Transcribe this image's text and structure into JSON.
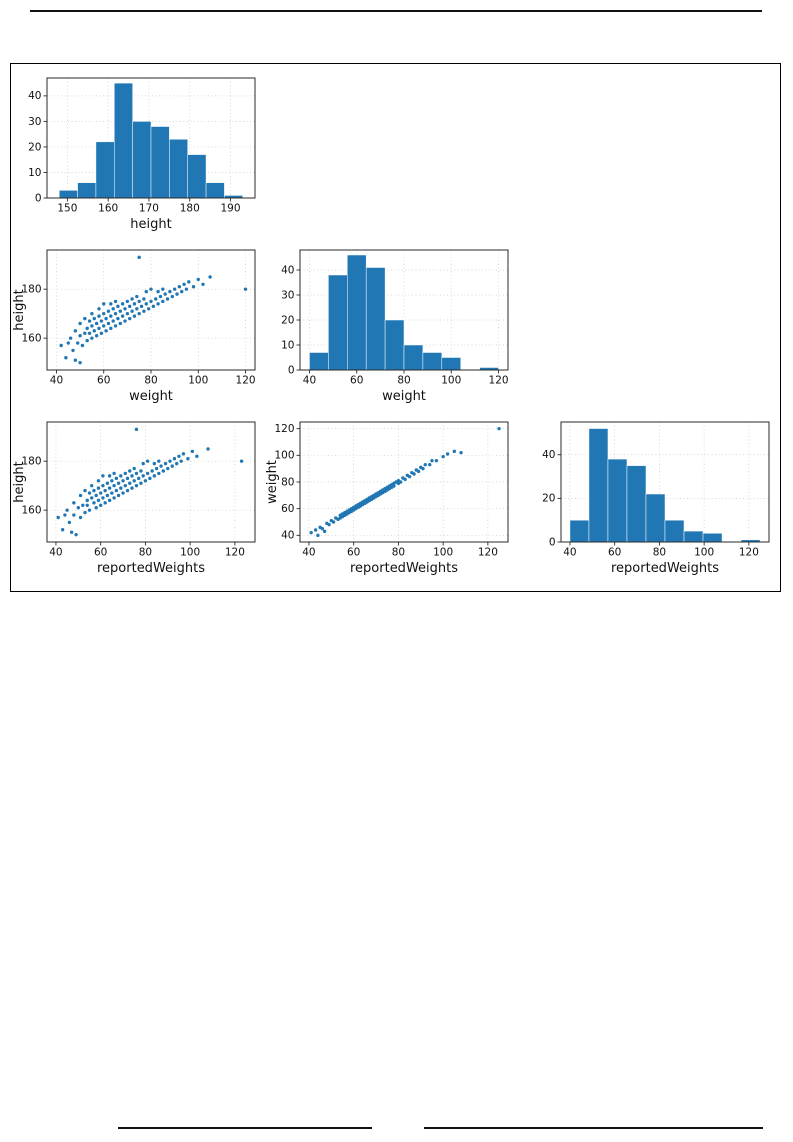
{
  "figure": {
    "accent_color": "#2077b4",
    "border_color": "#000000"
  },
  "chart_data": [
    {
      "type": "bar",
      "name": "height-histogram",
      "title": "",
      "xlabel": "height",
      "ylabel": "",
      "xlim": [
        145,
        196
      ],
      "ylim": [
        0,
        47
      ],
      "xticks": [
        150,
        160,
        170,
        180,
        190
      ],
      "yticks": [
        0,
        10,
        20,
        30,
        40
      ],
      "grid": true,
      "color": "#2077b4",
      "bins": {
        "start": 148,
        "width": 4.5,
        "counts": [
          3,
          6,
          22,
          45,
          30,
          28,
          23,
          17,
          6,
          1
        ]
      }
    },
    {
      "type": "scatter",
      "name": "weight-vs-height-scatter",
      "title": "",
      "xlabel": "weight",
      "ylabel": "height",
      "xlim": [
        36,
        124
      ],
      "ylim": [
        147,
        196
      ],
      "xticks": [
        40,
        60,
        80,
        100,
        120
      ],
      "yticks": [
        160,
        180
      ],
      "grid": true,
      "color": "#2077b4",
      "points": [
        [
          42,
          157
        ],
        [
          44,
          152
        ],
        [
          45,
          158
        ],
        [
          46,
          160
        ],
        [
          47,
          155
        ],
        [
          48,
          151
        ],
        [
          48,
          163
        ],
        [
          49,
          158
        ],
        [
          50,
          150
        ],
        [
          50,
          161
        ],
        [
          50,
          166
        ],
        [
          51,
          157
        ],
        [
          52,
          162
        ],
        [
          52,
          168
        ],
        [
          53,
          159
        ],
        [
          53,
          164
        ],
        [
          54,
          162
        ],
        [
          54,
          167
        ],
        [
          55,
          160
        ],
        [
          55,
          165
        ],
        [
          55,
          170
        ],
        [
          56,
          163
        ],
        [
          56,
          168
        ],
        [
          57,
          161
        ],
        [
          57,
          166
        ],
        [
          58,
          164
        ],
        [
          58,
          169
        ],
        [
          58,
          172
        ],
        [
          59,
          162
        ],
        [
          59,
          167
        ],
        [
          60,
          165
        ],
        [
          60,
          170
        ],
        [
          60,
          174
        ],
        [
          61,
          163
        ],
        [
          61,
          168
        ],
        [
          62,
          166
        ],
        [
          62,
          171
        ],
        [
          63,
          164
        ],
        [
          63,
          169
        ],
        [
          63,
          174
        ],
        [
          64,
          167
        ],
        [
          64,
          172
        ],
        [
          65,
          165
        ],
        [
          65,
          170
        ],
        [
          65,
          175
        ],
        [
          66,
          168
        ],
        [
          66,
          173
        ],
        [
          67,
          166
        ],
        [
          67,
          171
        ],
        [
          68,
          169
        ],
        [
          68,
          174
        ],
        [
          69,
          167
        ],
        [
          69,
          172
        ],
        [
          70,
          170
        ],
        [
          70,
          175
        ],
        [
          71,
          168
        ],
        [
          71,
          173
        ],
        [
          72,
          171
        ],
        [
          72,
          176
        ],
        [
          73,
          169
        ],
        [
          73,
          174
        ],
        [
          74,
          172
        ],
        [
          74,
          177
        ],
        [
          75,
          170
        ],
        [
          75,
          175
        ],
        [
          75,
          193
        ],
        [
          76,
          173
        ],
        [
          77,
          171
        ],
        [
          77,
          176
        ],
        [
          78,
          174
        ],
        [
          78,
          179
        ],
        [
          79,
          172
        ],
        [
          80,
          175
        ],
        [
          80,
          180
        ],
        [
          81,
          173
        ],
        [
          82,
          176
        ],
        [
          83,
          174
        ],
        [
          83,
          179
        ],
        [
          84,
          177
        ],
        [
          85,
          175
        ],
        [
          85,
          180
        ],
        [
          86,
          178
        ],
        [
          87,
          176
        ],
        [
          88,
          179
        ],
        [
          89,
          177
        ],
        [
          90,
          180
        ],
        [
          91,
          178
        ],
        [
          92,
          181
        ],
        [
          93,
          179
        ],
        [
          94,
          182
        ],
        [
          95,
          180
        ],
        [
          96,
          183
        ],
        [
          98,
          181
        ],
        [
          100,
          184
        ],
        [
          102,
          182
        ],
        [
          105,
          185
        ],
        [
          120,
          180
        ]
      ]
    },
    {
      "type": "bar",
      "name": "weight-histogram",
      "title": "",
      "xlabel": "weight",
      "ylabel": "",
      "xlim": [
        36,
        124
      ],
      "ylim": [
        0,
        48
      ],
      "xticks": [
        40,
        60,
        80,
        100,
        120
      ],
      "yticks": [
        0,
        10,
        20,
        30,
        40
      ],
      "grid": true,
      "color": "#2077b4",
      "bins": {
        "start": 40,
        "width": 8,
        "counts": [
          7,
          38,
          46,
          41,
          20,
          10,
          7,
          5,
          0,
          1
        ]
      }
    },
    {
      "type": "scatter",
      "name": "reportedweights-vs-height-scatter",
      "title": "",
      "xlabel": "reportedWeights",
      "ylabel": "height",
      "xlim": [
        36,
        129
      ],
      "ylim": [
        147,
        196
      ],
      "xticks": [
        40,
        60,
        80,
        100,
        120
      ],
      "yticks": [
        160,
        180
      ],
      "grid": true,
      "color": "#2077b4",
      "points": [
        [
          41,
          157
        ],
        [
          43,
          152
        ],
        [
          44,
          158
        ],
        [
          45,
          160
        ],
        [
          46,
          155
        ],
        [
          47,
          151
        ],
        [
          48,
          163
        ],
        [
          48,
          158
        ],
        [
          49,
          150
        ],
        [
          50,
          161
        ],
        [
          51,
          166
        ],
        [
          51,
          157
        ],
        [
          52,
          162
        ],
        [
          53,
          168
        ],
        [
          53,
          159
        ],
        [
          54,
          164
        ],
        [
          54,
          162
        ],
        [
          55,
          167
        ],
        [
          55,
          160
        ],
        [
          56,
          165
        ],
        [
          56,
          170
        ],
        [
          57,
          163
        ],
        [
          57,
          168
        ],
        [
          58,
          161
        ],
        [
          58,
          166
        ],
        [
          59,
          164
        ],
        [
          59,
          169
        ],
        [
          59,
          172
        ],
        [
          60,
          162
        ],
        [
          60,
          167
        ],
        [
          61,
          165
        ],
        [
          61,
          170
        ],
        [
          61,
          174
        ],
        [
          62,
          163
        ],
        [
          62,
          168
        ],
        [
          63,
          166
        ],
        [
          63,
          171
        ],
        [
          64,
          164
        ],
        [
          64,
          169
        ],
        [
          64,
          174
        ],
        [
          65,
          167
        ],
        [
          65,
          172
        ],
        [
          66,
          165
        ],
        [
          66,
          170
        ],
        [
          66,
          175
        ],
        [
          67,
          168
        ],
        [
          67,
          173
        ],
        [
          68,
          166
        ],
        [
          68,
          171
        ],
        [
          69,
          169
        ],
        [
          69,
          174
        ],
        [
          70,
          167
        ],
        [
          70,
          172
        ],
        [
          71,
          170
        ],
        [
          71,
          175
        ],
        [
          72,
          168
        ],
        [
          72,
          173
        ],
        [
          73,
          171
        ],
        [
          73,
          176
        ],
        [
          74,
          169
        ],
        [
          74,
          174
        ],
        [
          75,
          172
        ],
        [
          75,
          177
        ],
        [
          76,
          170
        ],
        [
          76,
          175
        ],
        [
          76,
          193
        ],
        [
          77,
          173
        ],
        [
          78,
          171
        ],
        [
          78,
          176
        ],
        [
          79,
          174
        ],
        [
          79,
          179
        ],
        [
          80,
          172
        ],
        [
          81,
          175
        ],
        [
          81,
          180
        ],
        [
          82,
          173
        ],
        [
          83,
          176
        ],
        [
          84,
          174
        ],
        [
          84,
          179
        ],
        [
          85,
          177
        ],
        [
          86,
          175
        ],
        [
          86,
          180
        ],
        [
          87,
          178
        ],
        [
          88,
          176
        ],
        [
          89,
          179
        ],
        [
          90,
          177
        ],
        [
          91,
          180
        ],
        [
          92,
          178
        ],
        [
          93,
          181
        ],
        [
          94,
          179
        ],
        [
          95,
          182
        ],
        [
          96,
          180
        ],
        [
          97,
          183
        ],
        [
          99,
          181
        ],
        [
          101,
          184
        ],
        [
          103,
          182
        ],
        [
          108,
          185
        ],
        [
          123,
          180
        ]
      ]
    },
    {
      "type": "scatter",
      "name": "reportedweights-vs-weight-scatter",
      "title": "",
      "xlabel": "reportedWeights",
      "ylabel": "weight",
      "xlim": [
        36,
        129
      ],
      "ylim": [
        35,
        125
      ],
      "xticks": [
        40,
        60,
        80,
        100,
        120
      ],
      "yticks": [
        40,
        60,
        80,
        100,
        120
      ],
      "grid": true,
      "color": "#2077b4",
      "points": [
        [
          41,
          42
        ],
        [
          43,
          44
        ],
        [
          44,
          40
        ],
        [
          45,
          46
        ],
        [
          46,
          45
        ],
        [
          47,
          43
        ],
        [
          48,
          49
        ],
        [
          49,
          48
        ],
        [
          50,
          51
        ],
        [
          51,
          50
        ],
        [
          52,
          53
        ],
        [
          53,
          52
        ],
        [
          54,
          55
        ],
        [
          54,
          53
        ],
        [
          55,
          56
        ],
        [
          55,
          54
        ],
        [
          56,
          55
        ],
        [
          56,
          57
        ],
        [
          57,
          58
        ],
        [
          57,
          56
        ],
        [
          58,
          57
        ],
        [
          58,
          59
        ],
        [
          59,
          60
        ],
        [
          59,
          58
        ],
        [
          60,
          59
        ],
        [
          60,
          61
        ],
        [
          61,
          60
        ],
        [
          61,
          62
        ],
        [
          62,
          63
        ],
        [
          62,
          61
        ],
        [
          63,
          62
        ],
        [
          63,
          64
        ],
        [
          64,
          63
        ],
        [
          64,
          65
        ],
        [
          65,
          66
        ],
        [
          65,
          64
        ],
        [
          66,
          67
        ],
        [
          66,
          65
        ],
        [
          67,
          66
        ],
        [
          67,
          68
        ],
        [
          68,
          69
        ],
        [
          68,
          67
        ],
        [
          69,
          70
        ],
        [
          69,
          68
        ],
        [
          70,
          69
        ],
        [
          70,
          71
        ],
        [
          71,
          70
        ],
        [
          71,
          72
        ],
        [
          72,
          73
        ],
        [
          72,
          71
        ],
        [
          73,
          72
        ],
        [
          73,
          74
        ],
        [
          74,
          75
        ],
        [
          74,
          73
        ],
        [
          75,
          74
        ],
        [
          75,
          76
        ],
        [
          76,
          75
        ],
        [
          76,
          77
        ],
        [
          77,
          78
        ],
        [
          77,
          76
        ],
        [
          78,
          77
        ],
        [
          78,
          79
        ],
        [
          79,
          80
        ],
        [
          80,
          79
        ],
        [
          80,
          81
        ],
        [
          81,
          80
        ],
        [
          82,
          83
        ],
        [
          83,
          82
        ],
        [
          84,
          85
        ],
        [
          85,
          84
        ],
        [
          86,
          87
        ],
        [
          87,
          86
        ],
        [
          88,
          89
        ],
        [
          89,
          88
        ],
        [
          90,
          91
        ],
        [
          91,
          90
        ],
        [
          92,
          93
        ],
        [
          94,
          93
        ],
        [
          95,
          96
        ],
        [
          97,
          96
        ],
        [
          100,
          99
        ],
        [
          102,
          101
        ],
        [
          105,
          103
        ],
        [
          108,
          102
        ],
        [
          125,
          120
        ]
      ]
    },
    {
      "type": "bar",
      "name": "reportedweights-histogram",
      "title": "",
      "xlabel": "reportedWeights",
      "ylabel": "",
      "xlim": [
        36,
        129
      ],
      "ylim": [
        0,
        55
      ],
      "xticks": [
        40,
        60,
        80,
        100,
        120
      ],
      "yticks": [
        0,
        20,
        40
      ],
      "grid": true,
      "color": "#2077b4",
      "bins": {
        "start": 40,
        "width": 8.5,
        "counts": [
          10,
          52,
          38,
          35,
          22,
          10,
          5,
          4,
          0,
          1
        ]
      }
    }
  ]
}
